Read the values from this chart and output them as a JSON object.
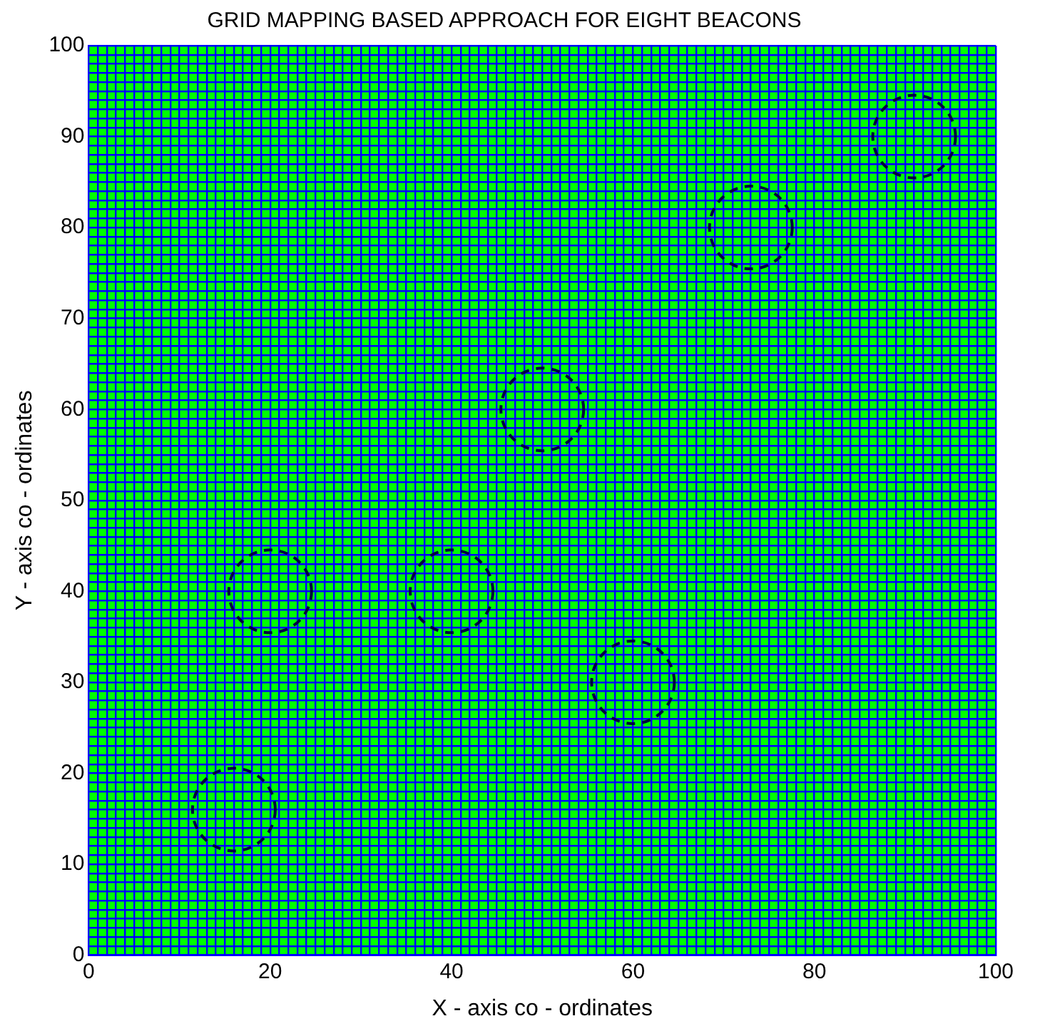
{
  "chart_data": {
    "type": "scatter",
    "title": "GRID MAPPING BASED APPROACH FOR EIGHT BEACONS",
    "xlabel": "X - axis co - ordinates",
    "ylabel": "Y - axis co - ordinates",
    "series": [
      {
        "color": "#000040",
        "x": [
          16,
          20,
          40,
          50,
          60,
          73,
          91
        ],
        "values": [
          16,
          40,
          40,
          60,
          30,
          80,
          90
        ]
      }
    ],
    "marker": "circle",
    "grid": true,
    "legend": false,
    "xlim": [
      0,
      100
    ],
    "ylim": [
      0,
      100
    ],
    "xticks": [
      0,
      {
        "value": 1,
        "label": null
      },
      {
        "value": 2,
        "label": null
      },
      {
        "value": 3,
        "label": null
      },
      {
        "value": 4,
        "label": null
      },
      {
        "value": 5,
        "label": null
      },
      {
        "value": 6,
        "label": null
      },
      {
        "value": 7,
        "label": null
      },
      {
        "value": 8,
        "label": null
      },
      {
        "value": 9,
        "label": null
      },
      {
        "value": 10,
        "label": null
      },
      {
        "value": 11,
        "label": null
      },
      {
        "value": 12,
        "label": null
      },
      {
        "value": 13,
        "label": null
      },
      {
        "value": 14,
        "label": null
      },
      {
        "value": 15,
        "label": null
      },
      {
        "value": 16,
        "label": null
      },
      {
        "value": 17,
        "label": null
      },
      {
        "value": 18,
        "label": null
      },
      {
        "value": 19,
        "label": null
      },
      20,
      {
        "value": 21,
        "label": null
      },
      {
        "value": 22,
        "label": null
      },
      {
        "value": 23,
        "label": null
      },
      {
        "value": 24,
        "label": null
      },
      {
        "value": 25,
        "label": null
      },
      {
        "value": 26,
        "label": null
      },
      {
        "value": 27,
        "label": null
      },
      {
        "value": 28,
        "label": null
      },
      {
        "value": 29,
        "label": null
      },
      {
        "value": 30,
        "label": null
      },
      {
        "value": 31,
        "label": null
      },
      {
        "value": 32,
        "label": null
      },
      {
        "value": 33,
        "label": null
      },
      {
        "value": 34,
        "label": null
      },
      {
        "value": 35,
        "label": null
      },
      {
        "value": 36,
        "label": null
      },
      {
        "value": 37,
        "label": null
      },
      {
        "value": 38,
        "label": null
      },
      {
        "value": 39,
        "label": null
      },
      40,
      {
        "value": 41,
        "label": null
      },
      {
        "value": 42,
        "label": null
      },
      {
        "value": 43,
        "label": null
      },
      {
        "value": 44,
        "label": null
      },
      {
        "value": 45,
        "label": null
      },
      {
        "value": 46,
        "label": null
      },
      {
        "value": 47,
        "label": null
      },
      {
        "value": 48,
        "label": null
      },
      {
        "value": 49,
        "label": null
      },
      {
        "value": 50,
        "label": null
      },
      {
        "value": 51,
        "label": null
      },
      {
        "value": 52,
        "label": null
      },
      {
        "value": 53,
        "label": null
      },
      {
        "value": 54,
        "label": null
      },
      {
        "value": 55,
        "label": null
      },
      {
        "value": 56,
        "label": null
      },
      {
        "value": 57,
        "label": null
      },
      {
        "value": 58,
        "label": null
      },
      {
        "value": 59,
        "label": null
      },
      60,
      {
        "value": 61,
        "label": null
      },
      {
        "value": 62,
        "label": null
      },
      {
        "value": 63,
        "label": null
      },
      {
        "value": 64,
        "label": null
      },
      {
        "value": 65,
        "label": null
      },
      {
        "value": 66,
        "label": null
      },
      {
        "value": 67,
        "label": null
      },
      {
        "value": 68,
        "label": null
      },
      {
        "value": 69,
        "label": null
      },
      {
        "value": 70,
        "label": null
      },
      {
        "value": 71,
        "label": null
      },
      {
        "value": 72,
        "label": null
      },
      {
        "value": 73,
        "label": null
      },
      {
        "value": 74,
        "label": null
      },
      {
        "value": 75,
        "label": null
      },
      {
        "value": 76,
        "label": null
      },
      {
        "value": 77,
        "label": null
      },
      {
        "value": 78,
        "label": null
      },
      {
        "value": 79,
        "label": null
      },
      80,
      {
        "value": 81,
        "label": null
      },
      {
        "value": 82,
        "label": null
      },
      {
        "value": 83,
        "label": null
      },
      {
        "value": 84,
        "label": null
      },
      {
        "value": 85,
        "label": null
      },
      {
        "value": 86,
        "label": null
      },
      {
        "value": 87,
        "label": null
      },
      {
        "value": 88,
        "label": null
      },
      {
        "value": 89,
        "label": null
      },
      {
        "value": 90,
        "label": null
      },
      {
        "value": 91,
        "label": null
      },
      {
        "value": 92,
        "label": null
      },
      {
        "value": 93,
        "label": null
      },
      {
        "value": 94,
        "label": null
      },
      {
        "value": 95,
        "label": null
      },
      {
        "value": 96,
        "label": null
      },
      {
        "value": 97,
        "label": null
      },
      {
        "value": 98,
        "label": null
      },
      {
        "value": 99,
        "label": null
      },
      100
    ],
    "yticks": [
      0,
      {
        "value": 1,
        "label": null
      },
      {
        "value": 2,
        "label": null
      },
      {
        "value": 3,
        "label": null
      },
      {
        "value": 4,
        "label": null
      },
      {
        "value": 5,
        "label": null
      },
      {
        "value": 6,
        "label": null
      },
      {
        "value": 7,
        "label": null
      },
      {
        "value": 8,
        "label": null
      },
      {
        "value": 9,
        "label": null
      },
      10,
      {
        "value": 11,
        "label": null
      },
      {
        "value": 12,
        "label": null
      },
      {
        "value": 13,
        "label": null
      },
      {
        "value": 14,
        "label": null
      },
      {
        "value": 15,
        "label": null
      },
      {
        "value": 16,
        "label": null
      },
      {
        "value": 17,
        "label": null
      },
      {
        "value": 18,
        "label": null
      },
      {
        "value": 19,
        "label": null
      },
      20,
      {
        "value": 21,
        "label": null
      },
      {
        "value": 22,
        "label": null
      },
      {
        "value": 23,
        "label": null
      },
      {
        "value": 24,
        "label": null
      },
      {
        "value": 25,
        "label": null
      },
      {
        "value": 26,
        "label": null
      },
      {
        "value": 27,
        "label": null
      },
      {
        "value": 28,
        "label": null
      },
      {
        "value": 29,
        "label": null
      },
      30,
      {
        "value": 31,
        "label": null
      },
      {
        "value": 32,
        "label": null
      },
      {
        "value": 33,
        "label": null
      },
      {
        "value": 34,
        "label": null
      },
      {
        "value": 35,
        "label": null
      },
      {
        "value": 36,
        "label": null
      },
      {
        "value": 37,
        "label": null
      },
      {
        "value": 38,
        "label": null
      },
      {
        "value": 39,
        "label": null
      },
      40,
      {
        "value": 41,
        "label": null
      },
      {
        "value": 42,
        "label": null
      },
      {
        "value": 43,
        "label": null
      },
      {
        "value": 44,
        "label": null
      },
      {
        "value": 45,
        "label": null
      },
      {
        "value": 46,
        "label": null
      },
      {
        "value": 47,
        "label": null
      },
      {
        "value": 48,
        "label": null
      },
      {
        "value": 49,
        "label": null
      },
      50,
      {
        "value": 51,
        "label": null
      },
      {
        "value": 52,
        "label": null
      },
      {
        "value": 53,
        "label": null
      },
      {
        "value": 54,
        "label": null
      },
      {
        "value": 55,
        "label": null
      },
      {
        "value": 56,
        "label": null
      },
      {
        "value": 57,
        "label": null
      },
      {
        "value": 58,
        "label": null
      },
      {
        "value": 59,
        "label": null
      },
      60,
      {
        "value": 61,
        "label": null
      },
      {
        "value": 62,
        "label": null
      },
      {
        "value": 63,
        "label": null
      },
      {
        "value": 64,
        "label": null
      },
      {
        "value": 65,
        "label": null
      },
      {
        "value": 66,
        "label": null
      },
      {
        "value": 67,
        "label": null
      },
      {
        "value": 68,
        "label": null
      },
      {
        "value": 69,
        "label": null
      },
      70,
      {
        "value": 71,
        "label": null
      },
      {
        "value": 72,
        "label": null
      },
      {
        "value": 73,
        "label": null
      },
      {
        "value": 74,
        "label": null
      },
      {
        "value": 75,
        "label": null
      },
      {
        "value": 76,
        "label": null
      },
      {
        "value": 77,
        "label": null
      },
      {
        "value": 78,
        "label": null
      },
      {
        "value": 79,
        "label": null
      },
      80,
      {
        "value": 81,
        "label": null
      },
      {
        "value": 82,
        "label": null
      },
      {
        "value": 83,
        "label": null
      },
      {
        "value": 84,
        "label": null
      },
      {
        "value": 85,
        "label": null
      },
      {
        "value": 86,
        "label": null
      },
      {
        "value": 87,
        "label": null
      },
      {
        "value": 88,
        "label": null
      },
      {
        "value": 89,
        "label": null
      },
      90,
      {
        "value": 91,
        "label": null
      },
      {
        "value": 92,
        "label": null
      },
      {
        "value": 93,
        "label": null
      },
      {
        "value": 94,
        "label": null
      },
      {
        "value": 95,
        "label": null
      },
      {
        "value": 96,
        "label": null
      },
      {
        "value": 97,
        "label": null
      },
      {
        "value": 98,
        "label": null
      },
      {
        "value": 99,
        "label": null
      },
      100
    ]
  }
}
